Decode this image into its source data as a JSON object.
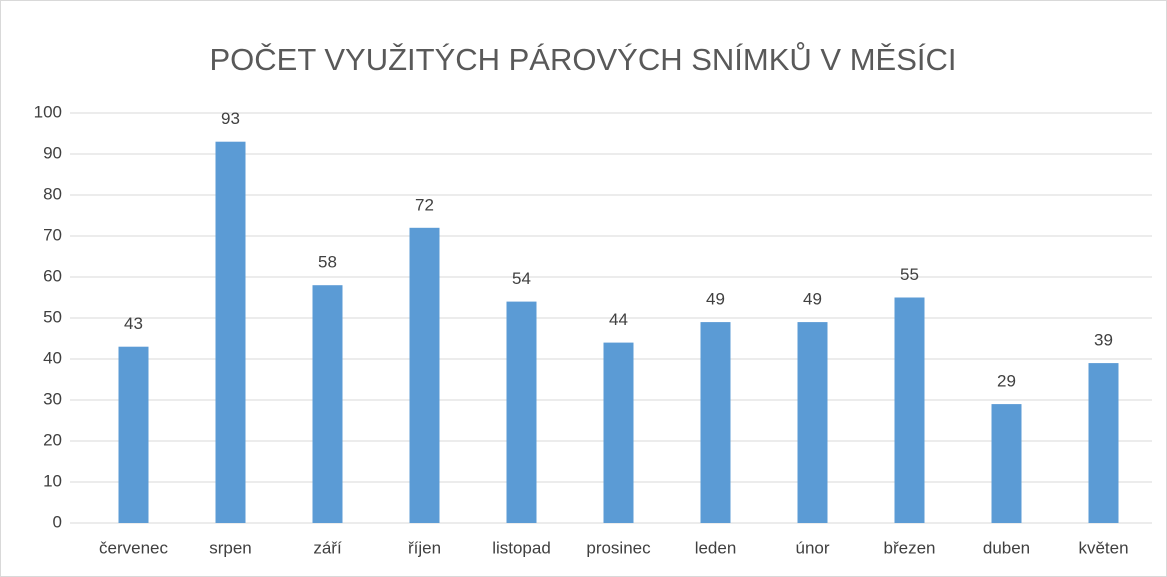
{
  "chart_data": {
    "type": "bar",
    "title": "POČET VYUŽITÝCH PÁROVÝCH SNÍMKŮ V MĚSÍCI",
    "categories": [
      "červenec",
      "srpen",
      "září",
      "říjen",
      "listopad",
      "prosinec",
      "leden",
      "únor",
      "březen",
      "duben",
      "květen"
    ],
    "values": [
      43,
      93,
      58,
      72,
      54,
      44,
      49,
      49,
      55,
      29,
      39
    ],
    "color": "#5b9bd5",
    "ylim": [
      0,
      100
    ],
    "yticks": [
      0,
      10,
      20,
      30,
      40,
      50,
      60,
      70,
      80,
      90,
      100
    ],
    "grid": true
  }
}
